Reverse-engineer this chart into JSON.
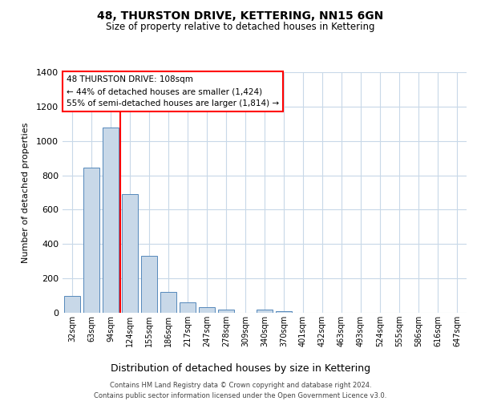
{
  "title": "48, THURSTON DRIVE, KETTERING, NN15 6GN",
  "subtitle": "Size of property relative to detached houses in Kettering",
  "xlabel": "Distribution of detached houses by size in Kettering",
  "ylabel": "Number of detached properties",
  "bar_labels": [
    "32sqm",
    "63sqm",
    "94sqm",
    "124sqm",
    "155sqm",
    "186sqm",
    "217sqm",
    "247sqm",
    "278sqm",
    "309sqm",
    "340sqm",
    "370sqm",
    "401sqm",
    "432sqm",
    "463sqm",
    "493sqm",
    "524sqm",
    "555sqm",
    "586sqm",
    "616sqm",
    "647sqm"
  ],
  "bar_values": [
    100,
    845,
    1080,
    690,
    330,
    120,
    60,
    33,
    20,
    0,
    17,
    10,
    0,
    0,
    0,
    0,
    0,
    0,
    0,
    0,
    0
  ],
  "bar_color": "#c8d8e8",
  "bar_edge_color": "#5588bb",
  "ylim": [
    0,
    1400
  ],
  "yticks": [
    0,
    200,
    400,
    600,
    800,
    1000,
    1200,
    1400
  ],
  "annotation_title": "48 THURSTON DRIVE: 108sqm",
  "annotation_line1": "← 44% of detached houses are smaller (1,424)",
  "annotation_line2": "55% of semi-detached houses are larger (1,814) →",
  "footer_line1": "Contains HM Land Registry data © Crown copyright and database right 2024.",
  "footer_line2": "Contains public sector information licensed under the Open Government Licence v3.0.",
  "background_color": "#ffffff",
  "grid_color": "#c8d8e8"
}
